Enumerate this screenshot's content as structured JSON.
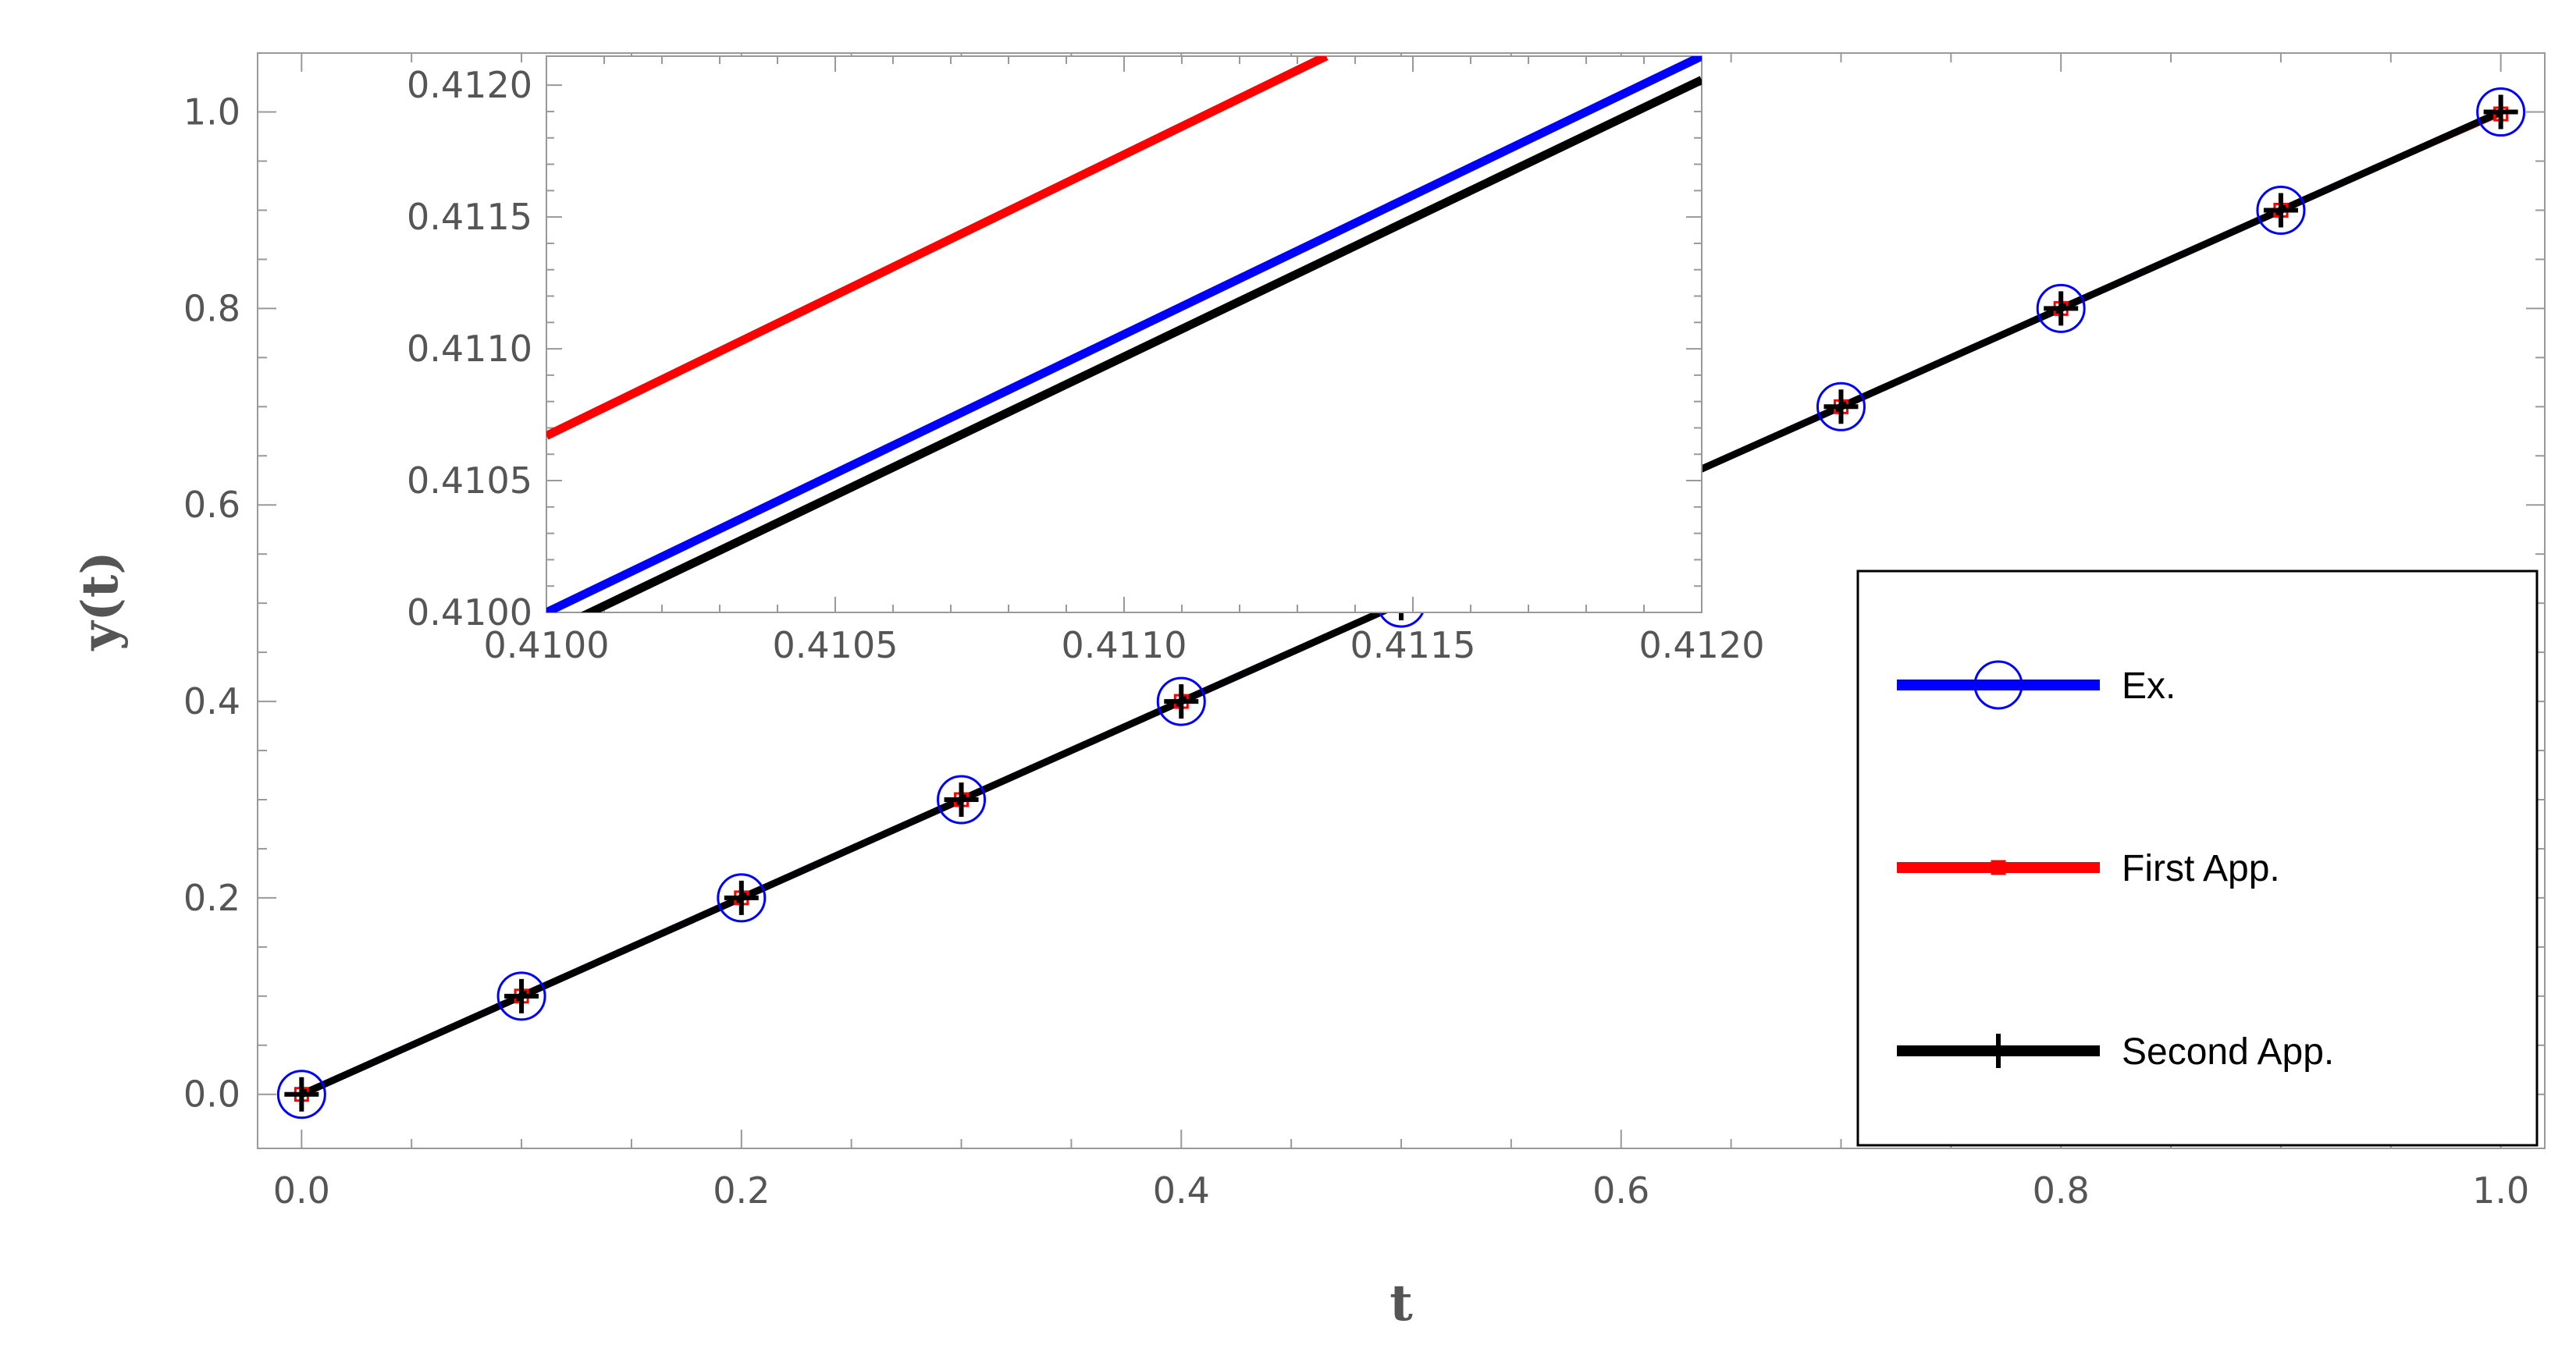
{
  "chart_data": [
    {
      "type": "line",
      "title": "",
      "xlabel": "t",
      "ylabel": "y(t)",
      "xlim": [
        -0.02,
        1.02
      ],
      "ylim": [
        -0.055,
        1.06
      ],
      "x_ticks": [
        0.0,
        0.2,
        0.4,
        0.6,
        0.8,
        1.0
      ],
      "x_tick_labels": [
        "0.0",
        "0.2",
        "0.4",
        "0.6",
        "0.8",
        "1.0"
      ],
      "y_ticks": [
        0.0,
        0.2,
        0.4,
        0.6,
        0.8,
        1.0
      ],
      "y_tick_labels": [
        "0.0",
        "0.2",
        "0.4",
        "0.6",
        "0.8",
        "1.0"
      ],
      "legend_position": "right",
      "grid": false,
      "series": [
        {
          "name": "Ex.",
          "color": "#0000ff",
          "marker": "circle",
          "x": [
            0.0,
            0.1,
            0.2,
            0.3,
            0.4,
            0.5,
            0.6,
            0.7,
            0.8,
            0.9,
            1.0
          ],
          "y": [
            0.0,
            0.1,
            0.2,
            0.3,
            0.4,
            0.5,
            0.6,
            0.7,
            0.8,
            0.9,
            1.0
          ]
        },
        {
          "name": "First App.",
          "color": "#ff0000",
          "marker": "square",
          "x": [
            0.0,
            0.1,
            0.2,
            0.3,
            0.4,
            0.5,
            0.6,
            0.7,
            0.8,
            0.9,
            1.0
          ],
          "y": [
            0.0,
            0.1,
            0.2,
            0.3,
            0.4,
            0.5,
            0.6,
            0.7,
            0.8,
            0.9,
            0.998
          ]
        },
        {
          "name": "Second App.",
          "color": "#000000",
          "marker": "plus",
          "x": [
            0.0,
            0.1,
            0.2,
            0.3,
            0.4,
            0.5,
            0.6,
            0.7,
            0.8,
            0.9,
            1.0
          ],
          "y": [
            0.0,
            0.1,
            0.2,
            0.3,
            0.4,
            0.5,
            0.6,
            0.7,
            0.8,
            0.9,
            1.0
          ]
        }
      ]
    },
    {
      "type": "line",
      "title": "",
      "xlabel": "",
      "ylabel": "",
      "xlim": [
        0.41,
        0.412
      ],
      "ylim": [
        0.41,
        0.41211
      ],
      "x_ticks": [
        0.41,
        0.4105,
        0.411,
        0.4115,
        0.412
      ],
      "x_tick_labels": [
        "0.4100",
        "0.4105",
        "0.4110",
        "0.4115",
        "0.4120"
      ],
      "y_ticks": [
        0.41,
        0.4105,
        0.411,
        0.4115,
        0.412
      ],
      "y_tick_labels": [
        "0.4100",
        "0.4105",
        "0.4110",
        "0.4115",
        "0.4120"
      ],
      "series": [
        {
          "name": "Ex.",
          "color": "#0000ff",
          "x": [
            0.41,
            0.412
          ],
          "y": [
            0.41,
            0.41211
          ]
        },
        {
          "name": "First App.",
          "color": "#ff0000",
          "x": [
            0.41,
            0.41135
          ],
          "y": [
            0.41067,
            0.41211
          ]
        },
        {
          "name": "Second App.",
          "color": "#000000",
          "x": [
            0.41,
            0.412
          ],
          "y": [
            0.40992,
            0.41202
          ]
        }
      ]
    }
  ]
}
